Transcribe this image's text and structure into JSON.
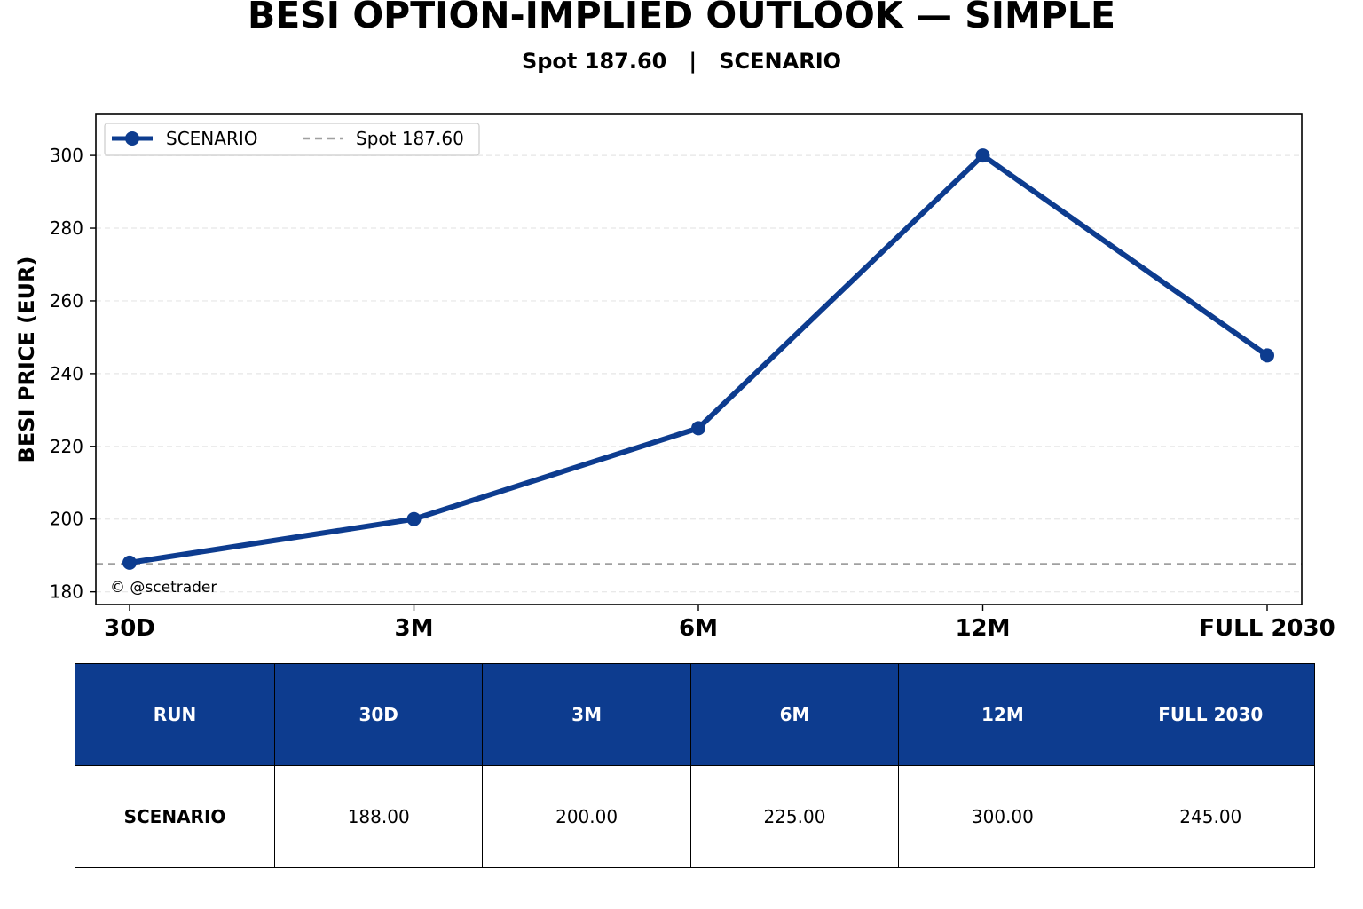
{
  "colors": {
    "series": "#0d3c8f",
    "spot_line": "#a0a0a0",
    "grid": "#e6e6e6",
    "table_header_bg": "#0d3c8f",
    "table_header_text": "#ffffff"
  },
  "chart_data": {
    "type": "line",
    "title": "BESI OPTION-IMPLIED OUTLOOK — SIMPLE",
    "subtitle": "Spot 187.60   |   SCENARIO",
    "xlabel": "",
    "ylabel": "BESI PRICE (EUR)",
    "categories": [
      "30D",
      "3M",
      "6M",
      "12M",
      "FULL 2030"
    ],
    "series": [
      {
        "name": "SCENARIO",
        "values": [
          188.0,
          200.0,
          225.0,
          300.0,
          245.0
        ]
      }
    ],
    "reference_line": {
      "name": "Spot 187.60",
      "value": 187.6
    },
    "yticks": [
      180,
      200,
      220,
      240,
      260,
      280,
      300
    ],
    "ylim": [
      176.5,
      311.5
    ],
    "grid": "horizontal dashed",
    "legend_placement": "top-left",
    "annotation": "© @scetrader"
  },
  "table": {
    "headers": [
      "RUN",
      "30D",
      "3M",
      "6M",
      "12M",
      "FULL 2030"
    ],
    "rows": [
      [
        "SCENARIO",
        "188.00",
        "200.00",
        "225.00",
        "300.00",
        "245.00"
      ]
    ]
  }
}
